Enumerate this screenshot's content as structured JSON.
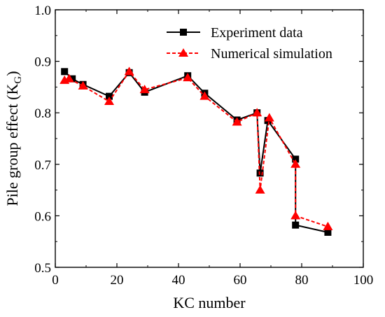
{
  "chart_data": {
    "type": "line",
    "xlabel": "KC number",
    "ylabel_main": "Pile group effect (K",
    "ylabel_sub": "G",
    "ylabel_end": ")",
    "xlim": [
      0,
      100
    ],
    "ylim": [
      0.5,
      1.0
    ],
    "xticks": [
      0,
      20,
      40,
      60,
      80,
      100
    ],
    "yticks": [
      0.5,
      0.6,
      0.7,
      0.8,
      0.9,
      1.0
    ],
    "xtick_labels": [
      "0",
      "20",
      "40",
      "60",
      "80",
      "100"
    ],
    "ytick_labels": [
      "0.5",
      "0.6",
      "0.7",
      "0.8",
      "0.9",
      "1.0"
    ],
    "grid": false,
    "legend_position": "top-right",
    "series": [
      {
        "name": "Experiment data",
        "color": "#000000",
        "line_style": "solid",
        "marker": "square",
        "x": [
          3,
          5.5,
          9,
          17.5,
          24,
          29,
          43,
          48.5,
          59,
          65.5,
          66.5,
          69,
          78,
          78,
          88.5
        ],
        "y": [
          0.88,
          0.866,
          0.855,
          0.832,
          0.878,
          0.84,
          0.872,
          0.838,
          0.786,
          0.8,
          0.683,
          0.785,
          0.71,
          0.582,
          0.568
        ]
      },
      {
        "name": "Numerical simulation",
        "color": "#ff0000",
        "line_style": "dashed",
        "marker": "triangle",
        "x": [
          3,
          4.5,
          9,
          17.5,
          24,
          29,
          43,
          48.5,
          59,
          65.5,
          66.5,
          69.5,
          78,
          78,
          88.5
        ],
        "y": [
          0.863,
          0.866,
          0.852,
          0.822,
          0.88,
          0.845,
          0.868,
          0.832,
          0.782,
          0.8,
          0.65,
          0.79,
          0.7,
          0.6,
          0.579
        ]
      }
    ]
  }
}
